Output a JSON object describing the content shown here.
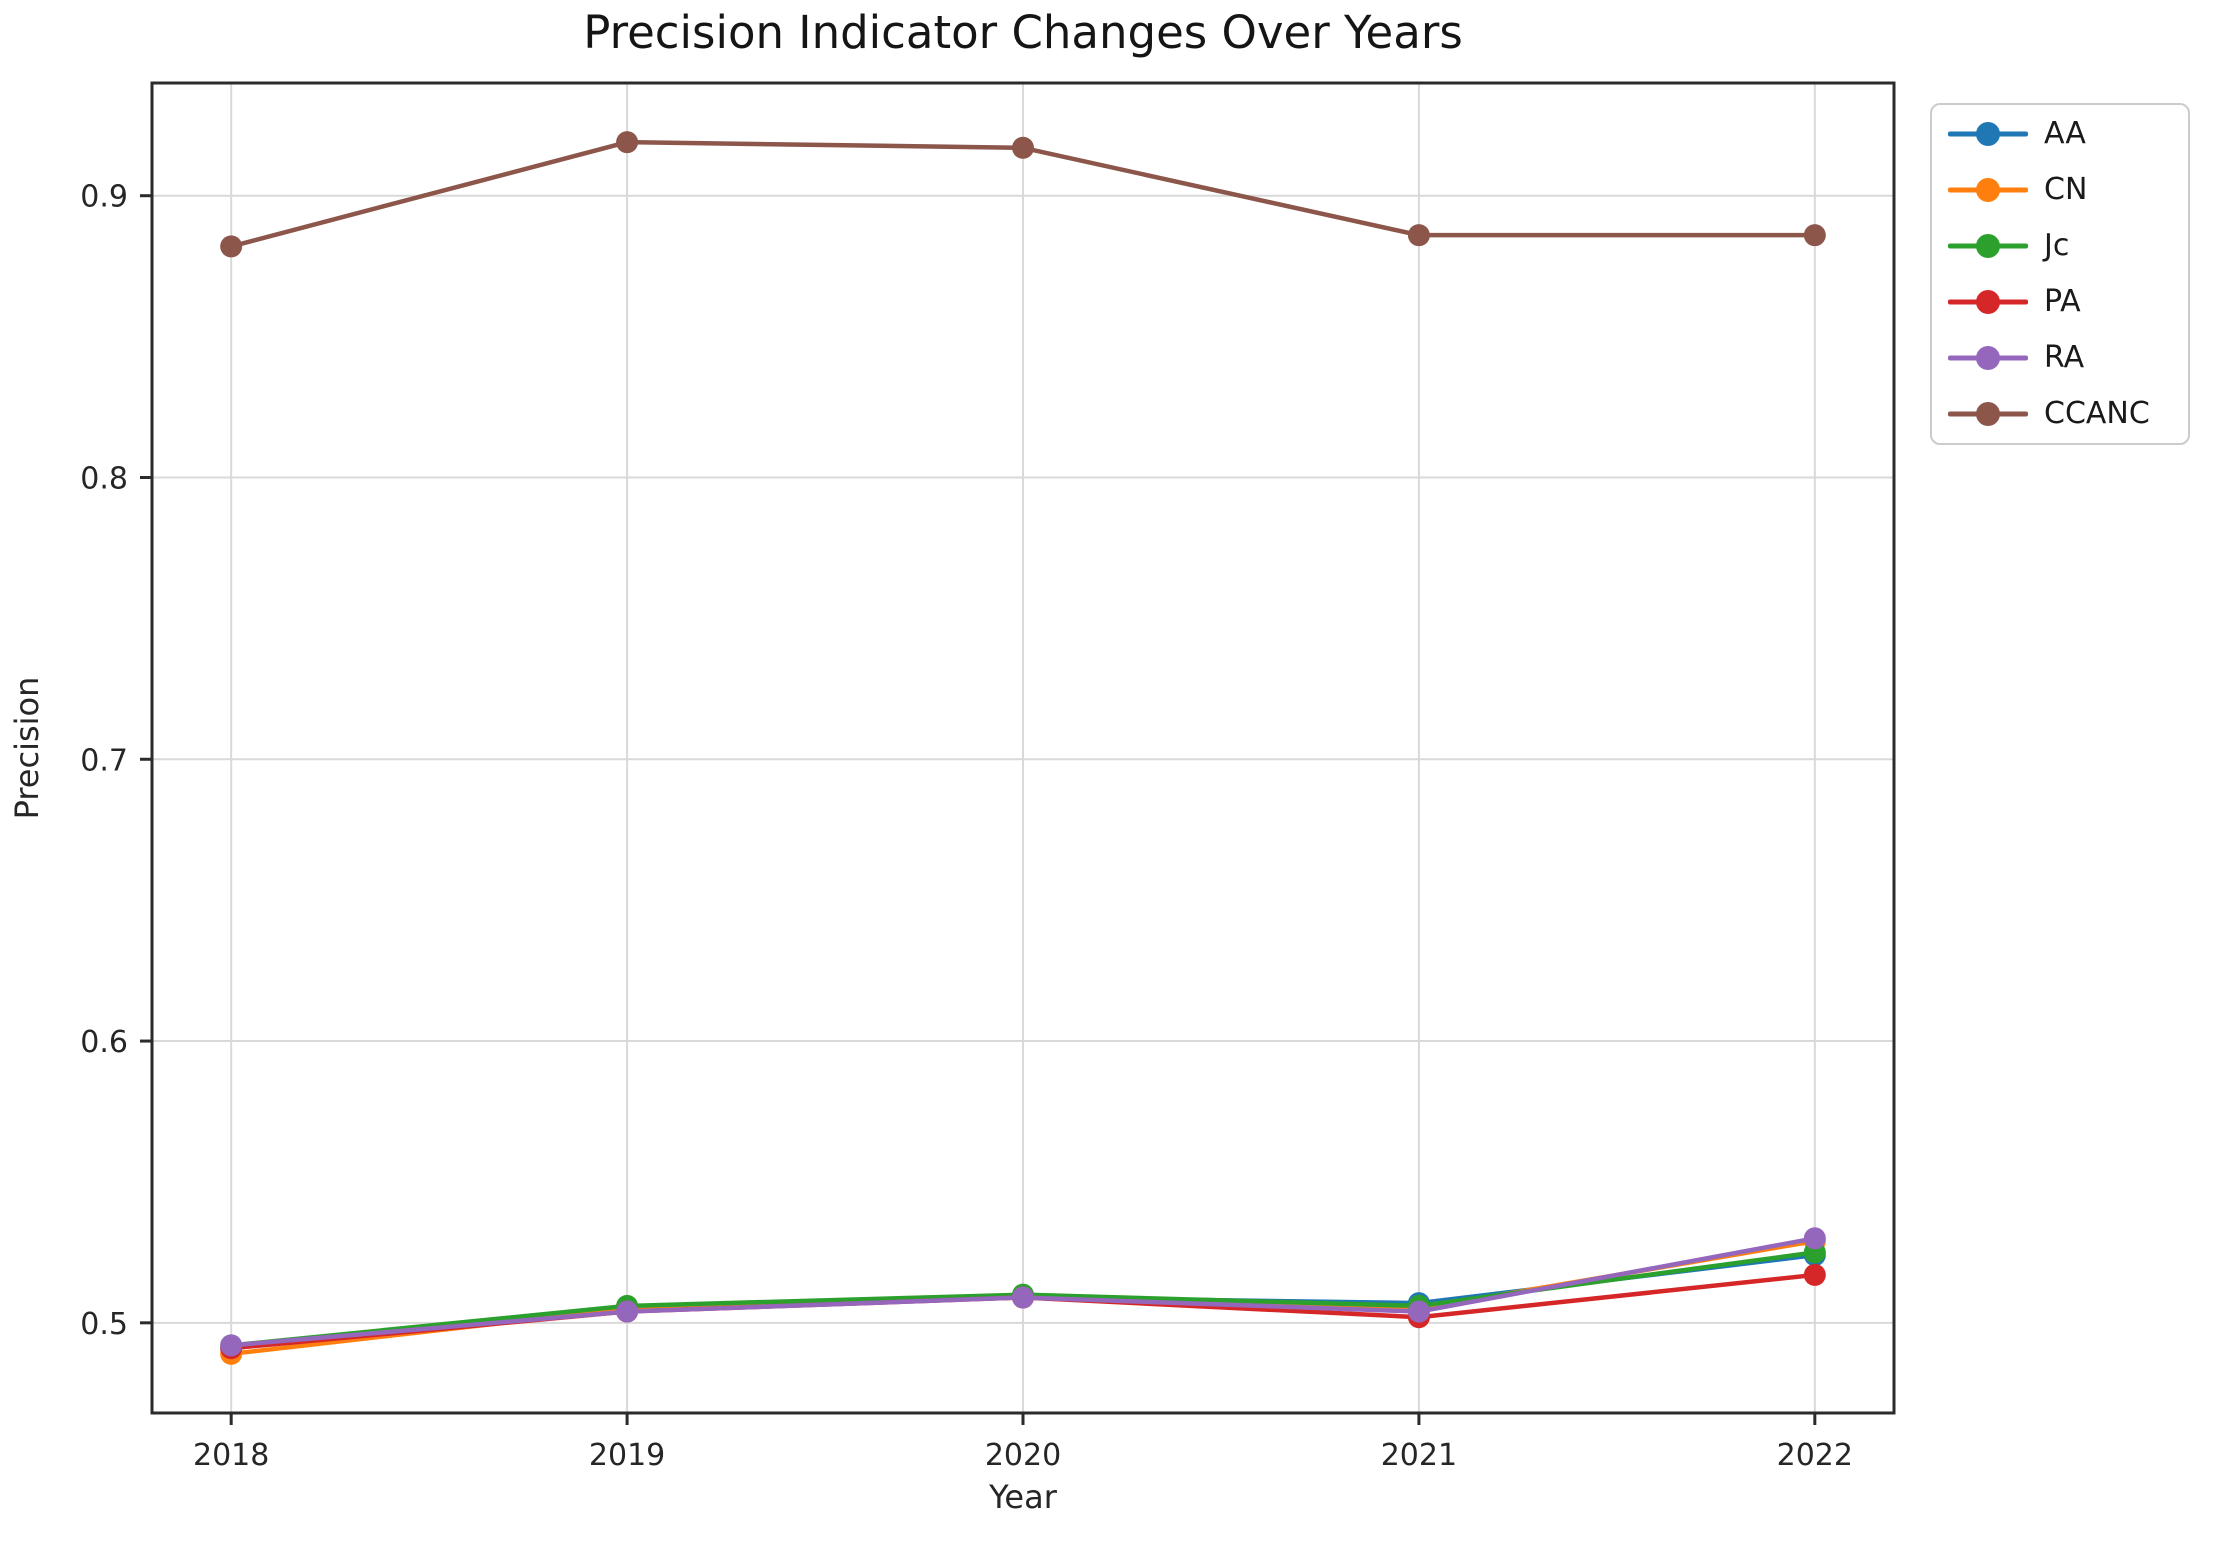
{
  "chart_data": {
    "type": "line",
    "title": "Precision Indicator Changes Over Years",
    "xlabel": "Year",
    "ylabel": "Precision",
    "x": [
      2018,
      2019,
      2020,
      2021,
      2022
    ],
    "xtick_labels": [
      "2018",
      "2019",
      "2020",
      "2021",
      "2022"
    ],
    "yticks": [
      0.5,
      0.6,
      0.7,
      0.8,
      0.9
    ],
    "ytick_labels": [
      "0.5",
      "0.6",
      "0.7",
      "0.8",
      "0.9"
    ],
    "xlim": [
      2017.8,
      2022.2
    ],
    "ylim": [
      0.468,
      0.94
    ],
    "grid": true,
    "legend_position": "outside-upper-right",
    "series": [
      {
        "name": "AA",
        "color": "#1f77b4",
        "values": [
          0.491,
          0.505,
          0.509,
          0.507,
          0.524
        ]
      },
      {
        "name": "CN",
        "color": "#ff7f0e",
        "values": [
          0.489,
          0.505,
          0.509,
          0.505,
          0.529
        ]
      },
      {
        "name": "Jc",
        "color": "#2ca02c",
        "values": [
          0.492,
          0.506,
          0.51,
          0.506,
          0.525
        ]
      },
      {
        "name": "PA",
        "color": "#d62728",
        "values": [
          0.491,
          0.504,
          0.509,
          0.502,
          0.517
        ]
      },
      {
        "name": "RA",
        "color": "#9467bd",
        "values": [
          0.492,
          0.504,
          0.509,
          0.504,
          0.53
        ]
      },
      {
        "name": "CCANC",
        "color": "#8c564b",
        "values": [
          0.882,
          0.919,
          0.917,
          0.886,
          0.886
        ]
      }
    ],
    "grid_color": "#d9d9d9",
    "axis_color": "#2b2b2b"
  }
}
